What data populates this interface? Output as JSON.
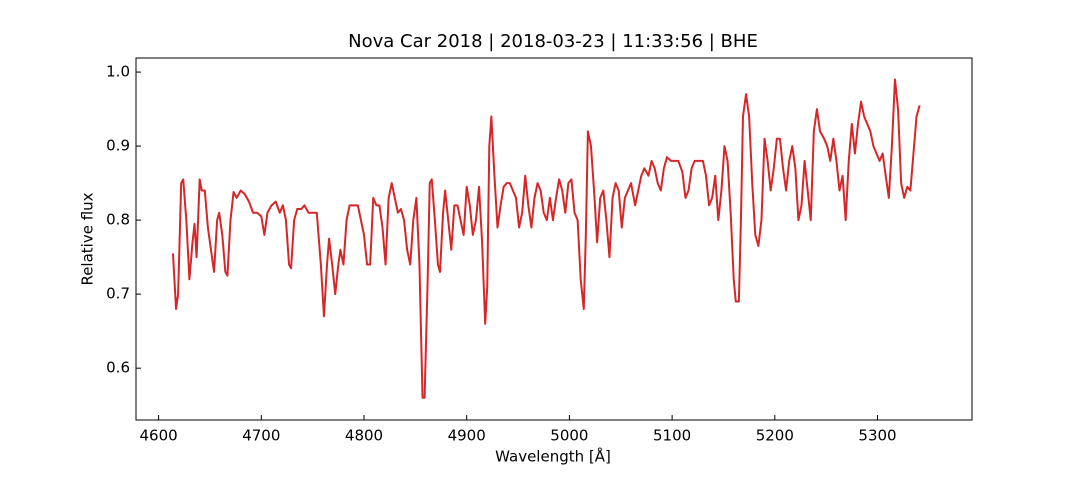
{
  "chart_data": {
    "type": "line",
    "title": "Nova Car 2018 | 2018-03-23 | 11:33:56 | BHE",
    "x_label": "Wavelength [Å]",
    "y_label": "Relative flux",
    "xlim": [
      4578,
      5392
    ],
    "ylim": [
      0.53,
      1.019
    ],
    "xticks": [
      4600,
      4700,
      4800,
      4900,
      5000,
      5100,
      5200,
      5300
    ],
    "yticks": [
      0.6,
      0.7,
      0.8,
      0.9,
      {
        "value": 1.0,
        "label": "1.0"
      }
    ],
    "x": [
      4614,
      4617,
      4619,
      4622,
      4624,
      4627,
      4630,
      4633,
      4635,
      4637,
      4640,
      4642,
      4645,
      4648,
      4651,
      4654,
      4657,
      4659,
      4662,
      4665,
      4667,
      4670,
      4673,
      4676,
      4680,
      4684,
      4688,
      4692,
      4696,
      4700,
      4703,
      4706,
      4710,
      4714,
      4718,
      4721,
      4724,
      4727,
      4729,
      4732,
      4735,
      4739,
      4742,
      4746,
      4750,
      4754,
      4758,
      4761,
      4764,
      4766,
      4769,
      4772,
      4775,
      4777,
      4780,
      4783,
      4786,
      4790,
      4794,
      4797,
      4800,
      4803,
      4806,
      4809,
      4812,
      4815,
      4818,
      4821,
      4824,
      4827,
      4830,
      4833,
      4836,
      4839,
      4842,
      4845,
      4848,
      4851,
      4854,
      4857,
      4859,
      4862,
      4864,
      4866,
      4869,
      4872,
      4874,
      4877,
      4879,
      4882,
      4885,
      4888,
      4891,
      4894,
      4897,
      4900,
      4903,
      4906,
      4909,
      4912,
      4915,
      4918,
      4920,
      4922,
      4924,
      4927,
      4930,
      4933,
      4936,
      4939,
      4942,
      4945,
      4948,
      4951,
      4954,
      4957,
      4960,
      4963,
      4966,
      4969,
      4972,
      4975,
      4978,
      4981,
      4984,
      4987,
      4990,
      4993,
      4996,
      4999,
      5002,
      5005,
      5008,
      5011,
      5014,
      5016,
      5018,
      5021,
      5024,
      5027,
      5030,
      5033,
      5036,
      5039,
      5042,
      5045,
      5048,
      5051,
      5054,
      5057,
      5060,
      5064,
      5067,
      5070,
      5073,
      5077,
      5080,
      5083,
      5086,
      5089,
      5092,
      5095,
      5099,
      5102,
      5106,
      5110,
      5113,
      5116,
      5119,
      5122,
      5126,
      5130,
      5133,
      5136,
      5139,
      5142,
      5145,
      5148,
      5151,
      5154,
      5157,
      5160,
      5162,
      5165,
      5167,
      5169,
      5172,
      5175,
      5178,
      5181,
      5184,
      5187,
      5190,
      5193,
      5196,
      5199,
      5202,
      5205,
      5208,
      5211,
      5214,
      5217,
      5220,
      5223,
      5226,
      5229,
      5232,
      5235,
      5238,
      5241,
      5244,
      5248,
      5251,
      5254,
      5257,
      5260,
      5263,
      5266,
      5269,
      5272,
      5275,
      5278,
      5281,
      5284,
      5287,
      5290,
      5293,
      5296,
      5299,
      5302,
      5305,
      5308,
      5311,
      5314,
      5317,
      5320,
      5323,
      5326,
      5329,
      5332,
      5335,
      5338,
      5341
    ],
    "series": [
      {
        "color": "#d62728",
        "values": [
          0.755,
          0.68,
          0.7,
          0.85,
          0.855,
          0.8,
          0.72,
          0.77,
          0.795,
          0.75,
          0.855,
          0.84,
          0.84,
          0.79,
          0.76,
          0.73,
          0.8,
          0.81,
          0.78,
          0.73,
          0.725,
          0.8,
          0.838,
          0.83,
          0.84,
          0.835,
          0.825,
          0.81,
          0.81,
          0.805,
          0.78,
          0.81,
          0.82,
          0.825,
          0.81,
          0.82,
          0.8,
          0.74,
          0.735,
          0.8,
          0.815,
          0.815,
          0.82,
          0.81,
          0.81,
          0.81,
          0.74,
          0.67,
          0.74,
          0.775,
          0.74,
          0.7,
          0.74,
          0.76,
          0.74,
          0.8,
          0.82,
          0.82,
          0.82,
          0.8,
          0.78,
          0.74,
          0.74,
          0.83,
          0.82,
          0.82,
          0.79,
          0.74,
          0.83,
          0.85,
          0.83,
          0.81,
          0.815,
          0.8,
          0.76,
          0.74,
          0.8,
          0.83,
          0.74,
          0.56,
          0.56,
          0.72,
          0.85,
          0.855,
          0.8,
          0.74,
          0.73,
          0.81,
          0.84,
          0.8,
          0.76,
          0.82,
          0.82,
          0.8,
          0.78,
          0.845,
          0.82,
          0.78,
          0.8,
          0.845,
          0.77,
          0.66,
          0.71,
          0.9,
          0.94,
          0.86,
          0.79,
          0.82,
          0.845,
          0.85,
          0.85,
          0.84,
          0.83,
          0.79,
          0.81,
          0.86,
          0.82,
          0.79,
          0.83,
          0.85,
          0.84,
          0.81,
          0.8,
          0.83,
          0.8,
          0.83,
          0.855,
          0.84,
          0.81,
          0.85,
          0.855,
          0.81,
          0.8,
          0.72,
          0.68,
          0.78,
          0.92,
          0.9,
          0.84,
          0.77,
          0.83,
          0.84,
          0.8,
          0.75,
          0.83,
          0.85,
          0.84,
          0.79,
          0.83,
          0.84,
          0.85,
          0.82,
          0.84,
          0.86,
          0.87,
          0.86,
          0.88,
          0.87,
          0.85,
          0.84,
          0.87,
          0.885,
          0.88,
          0.88,
          0.88,
          0.865,
          0.83,
          0.84,
          0.87,
          0.88,
          0.88,
          0.88,
          0.86,
          0.82,
          0.83,
          0.86,
          0.8,
          0.84,
          0.9,
          0.88,
          0.81,
          0.72,
          0.69,
          0.69,
          0.8,
          0.94,
          0.97,
          0.94,
          0.85,
          0.78,
          0.765,
          0.8,
          0.91,
          0.88,
          0.84,
          0.87,
          0.91,
          0.91,
          0.87,
          0.84,
          0.88,
          0.9,
          0.87,
          0.8,
          0.82,
          0.88,
          0.84,
          0.8,
          0.92,
          0.95,
          0.92,
          0.91,
          0.9,
          0.88,
          0.91,
          0.88,
          0.84,
          0.86,
          0.8,
          0.88,
          0.93,
          0.89,
          0.93,
          0.96,
          0.94,
          0.93,
          0.92,
          0.9,
          0.89,
          0.88,
          0.89,
          0.86,
          0.83,
          0.9,
          0.99,
          0.95,
          0.85,
          0.83,
          0.845,
          0.84,
          0.89,
          0.94,
          0.955
        ]
      }
    ]
  }
}
